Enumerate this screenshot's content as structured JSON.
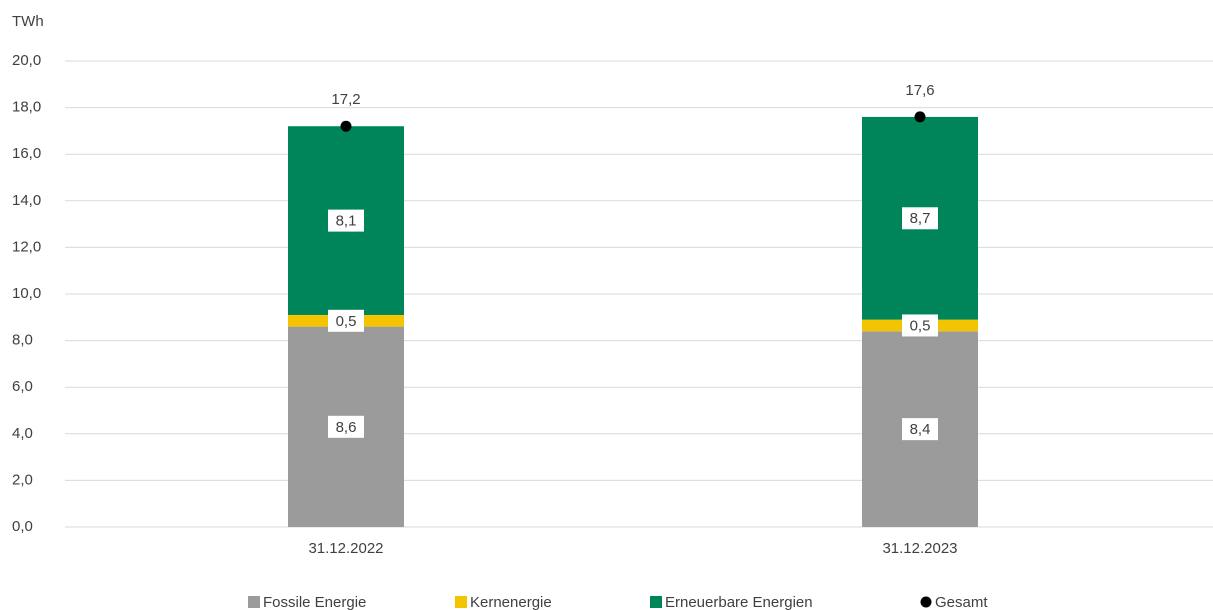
{
  "chart_data": {
    "type": "bar",
    "stacked": true,
    "y_label": "TWh",
    "categories": [
      "31.12.2022",
      "31.12.2023"
    ],
    "series": [
      {
        "name": "Fossile Energie",
        "color": "#9b9b9b",
        "values": [
          8.6,
          8.4
        ],
        "value_labels": [
          "8,6",
          "8,4"
        ]
      },
      {
        "name": "Kernenergie",
        "color": "#f5c400",
        "values": [
          0.5,
          0.5
        ],
        "value_labels": [
          "0,5",
          "0,5"
        ]
      },
      {
        "name": "Erneuerbare Energien",
        "color": "#00855a",
        "values": [
          8.1,
          8.7
        ],
        "value_labels": [
          "8,1",
          "8,7"
        ]
      },
      {
        "name": "Gesamt",
        "type": "scatter",
        "color": "#000000",
        "values": [
          17.2,
          17.6
        ],
        "value_labels": [
          "17,2",
          "17,6"
        ]
      }
    ],
    "ylim": [
      0,
      20
    ],
    "yticks": [
      {
        "value": 0,
        "label": "0,0"
      },
      {
        "value": 2,
        "label": "2,0"
      },
      {
        "value": 4,
        "label": "4,0"
      },
      {
        "value": 6,
        "label": "6,0"
      },
      {
        "value": 8,
        "label": "8,0"
      },
      {
        "value": 10,
        "label": "10,0"
      },
      {
        "value": 12,
        "label": "12,0"
      },
      {
        "value": 14,
        "label": "14,0"
      },
      {
        "value": 16,
        "label": "16,0"
      },
      {
        "value": 18,
        "label": "18,0"
      },
      {
        "value": 20,
        "label": "20,0"
      }
    ],
    "grid": true,
    "legend": "bottom"
  }
}
